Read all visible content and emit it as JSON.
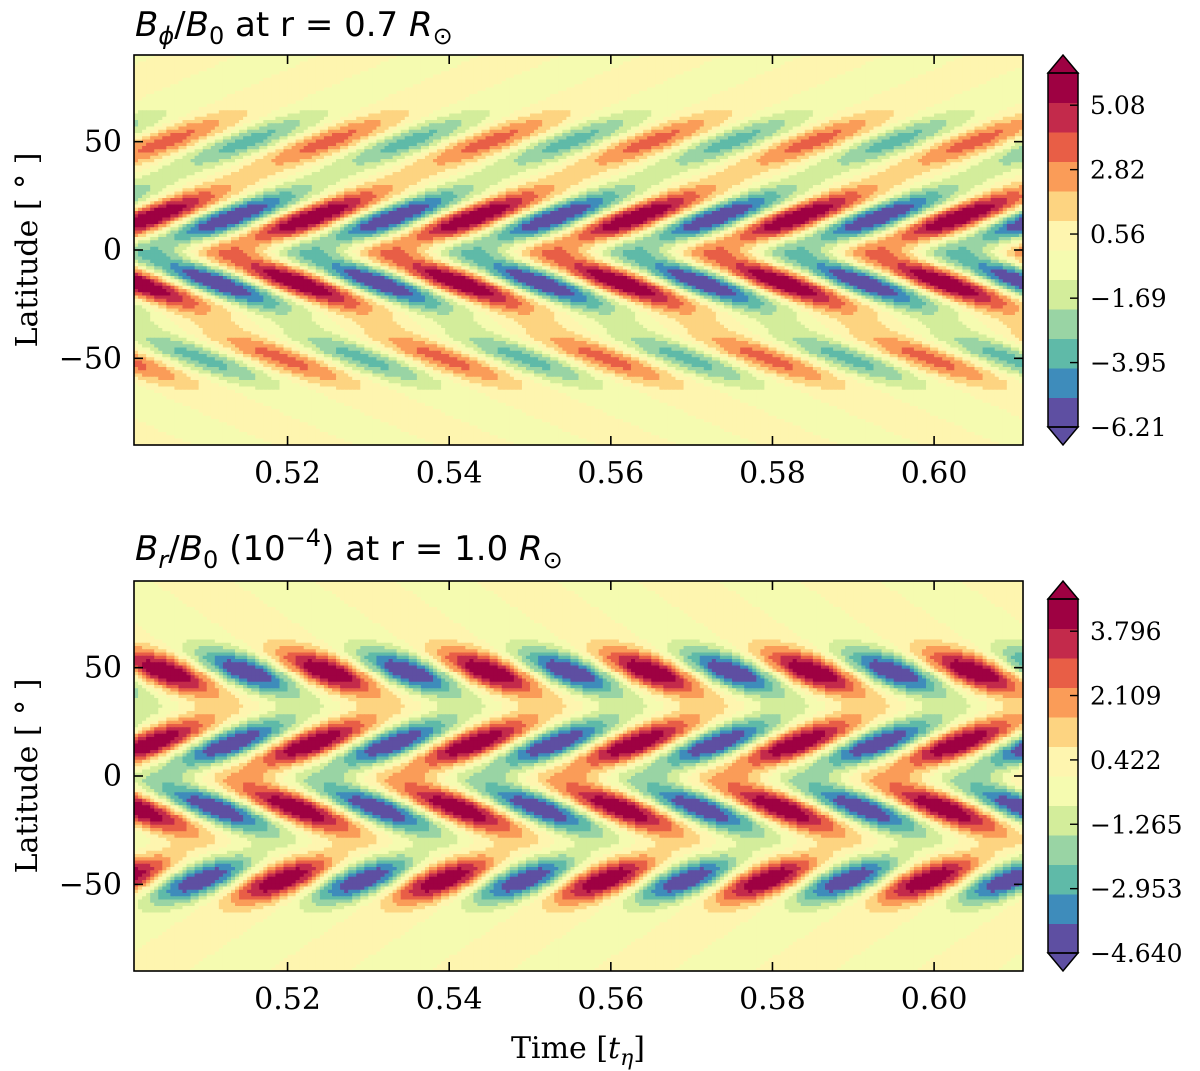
{
  "chart_data": [
    {
      "type": "heatmap",
      "title_parts": {
        "var": "B",
        "sub": "ϕ",
        "slash": "/",
        "norm": "B",
        "norm_sub": "0",
        "rest": " at r = 0.7 ",
        "rsun": "R",
        "sun_sub": "⊙"
      },
      "xlabel": "",
      "ylabel": "Latitude [ ° ]",
      "xlim": [
        0.501,
        0.611
      ],
      "ylim": [
        -90,
        90
      ],
      "xticks": [
        0.52,
        0.54,
        0.56,
        0.58,
        0.6
      ],
      "xtick_labels": [
        "0.52",
        "0.54",
        "0.56",
        "0.58",
        "0.60"
      ],
      "yticks": [
        50,
        0,
        -50
      ],
      "ytick_labels": [
        "50",
        "0",
        "−50"
      ],
      "colorbar": {
        "vmin": -6.21,
        "vmax": 6.21,
        "levels": 12,
        "extend": "both",
        "ticks": [
          5.08,
          2.82,
          0.56,
          -1.69,
          -3.95,
          -6.21
        ],
        "tick_labels": [
          "5.08",
          "2.82",
          "0.56",
          "−1.69",
          "−3.95",
          "−6.21"
        ]
      },
      "field": {
        "period": 0.02,
        "bands": [
          {
            "lat": 50,
            "w": 13,
            "amp": 0.55,
            "slope": 0.006
          },
          {
            "lat": 15,
            "w": 13,
            "amp": 1.0,
            "slope": 0.006
          },
          {
            "lat": -15,
            "w": 13,
            "amp": 1.0,
            "slope": -0.006
          },
          {
            "lat": -50,
            "w": 13,
            "amp": 0.55,
            "slope": -0.006
          }
        ]
      }
    },
    {
      "type": "heatmap",
      "title_parts": {
        "var": "B",
        "sub": "r",
        "slash": "/",
        "norm": "B",
        "norm_sub": "0",
        "rest": " (10",
        "exp": "−4",
        "rest2": ") at r = 1.0 ",
        "rsun": "R",
        "sun_sub": "⊙"
      },
      "xlabel": "Time [t_η]",
      "xlabel_parts": {
        "main": "Time [",
        "var": "t",
        "sub": "η",
        "close": "]"
      },
      "ylabel": "Latitude [ ° ]",
      "xlim": [
        0.501,
        0.611
      ],
      "ylim": [
        -90,
        90
      ],
      "xticks": [
        0.52,
        0.54,
        0.56,
        0.58,
        0.6
      ],
      "xtick_labels": [
        "0.52",
        "0.54",
        "0.56",
        "0.58",
        "0.60"
      ],
      "yticks": [
        50,
        0,
        -50
      ],
      "ytick_labels": [
        "50",
        "0",
        "−50"
      ],
      "colorbar": {
        "vmin": -4.64,
        "vmax": 4.64,
        "levels": 12,
        "extend": "both",
        "ticks": [
          3.796,
          2.109,
          0.422,
          -1.265,
          -2.953,
          -4.64
        ],
        "tick_labels": [
          "3.796",
          "2.109",
          "0.422",
          "−1.265",
          "−2.953",
          "−4.640"
        ]
      },
      "field": {
        "period": 0.02,
        "bands": [
          {
            "lat": 48,
            "w": 11,
            "amp": 1.0,
            "slope": -0.004
          },
          {
            "lat": 15,
            "w": 12,
            "amp": 1.0,
            "slope": 0.005
          },
          {
            "lat": -15,
            "w": 12,
            "amp": 1.0,
            "slope": -0.005
          },
          {
            "lat": -48,
            "w": 11,
            "amp": 1.0,
            "slope": 0.004
          }
        ]
      }
    }
  ],
  "palette": [
    "#5e4fa2",
    "#3e8cbb",
    "#5fbaa8",
    "#99d4a4",
    "#d3ed9b",
    "#f5fbb0",
    "#fef5af",
    "#fdd481",
    "#fa9c58",
    "#e85e46",
    "#c32a4b",
    "#9e0142"
  ]
}
